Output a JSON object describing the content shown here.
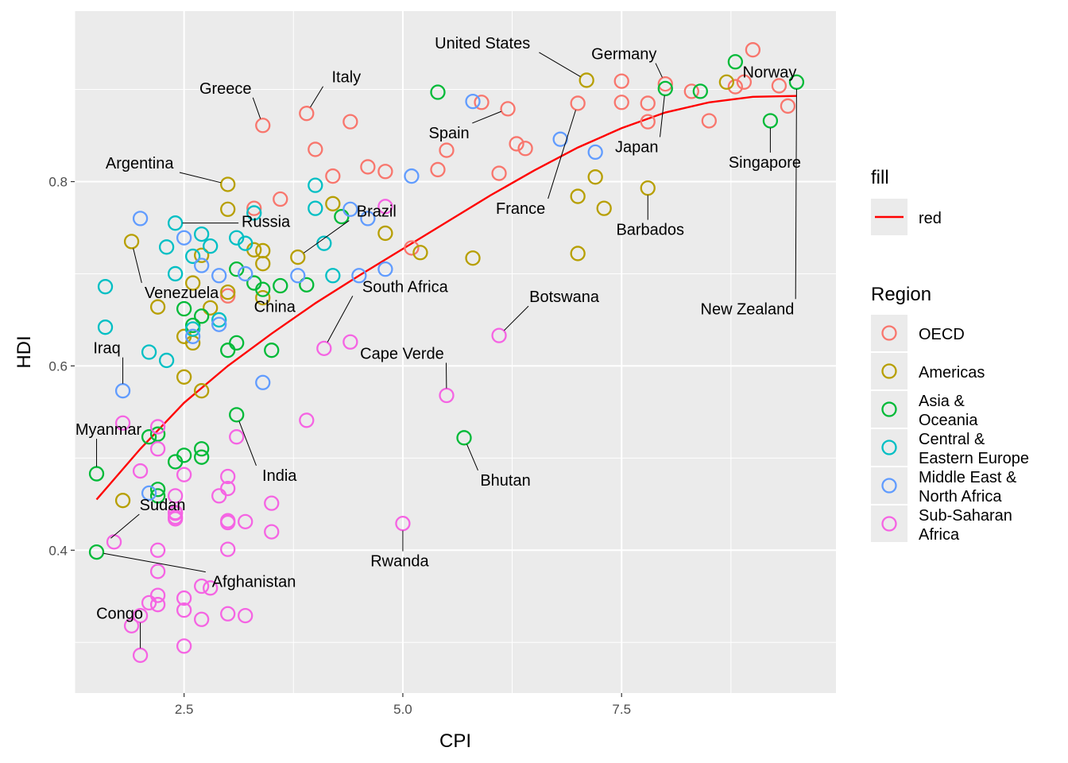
{
  "chart_data": {
    "type": "scatter",
    "xlabel": "CPI",
    "ylabel": "HDI",
    "xlim": [
      1.25,
      9.95
    ],
    "ylim": [
      0.245,
      0.985
    ],
    "x_ticks": [
      2.5,
      5.0,
      7.5
    ],
    "x_tick_labels": [
      "2.5",
      "5.0",
      "7.5"
    ],
    "y_ticks": [
      0.4,
      0.6,
      0.8
    ],
    "y_tick_labels": [
      "0.4",
      "0.6",
      "0.8"
    ],
    "x_minor": [
      1.25,
      3.75,
      6.25,
      8.75
    ],
    "y_minor": [
      0.3,
      0.5,
      0.7,
      0.9
    ],
    "grid": true,
    "panel_color": "#EBEBEB",
    "legend": {
      "fill_title": "fill",
      "fill_label": "red",
      "region_title": "Region",
      "region_entries": [
        {
          "key": "OECD",
          "lines": [
            "OECD"
          ],
          "color": "#F8766D"
        },
        {
          "key": "Americas",
          "lines": [
            "Americas"
          ],
          "color": "#B79F00"
        },
        {
          "key": "Asia",
          "lines": [
            "Asia &",
            "Oceania"
          ],
          "color": "#00BA38"
        },
        {
          "key": "CEE",
          "lines": [
            "Central &",
            "Eastern Europe"
          ],
          "color": "#00BFC4"
        },
        {
          "key": "MENA",
          "lines": [
            "Middle East &",
            "North Africa"
          ],
          "color": "#619CFF"
        },
        {
          "key": "SSA",
          "lines": [
            "Sub-Saharan",
            "Africa"
          ],
          "color": "#F564E3"
        }
      ]
    },
    "trend_line": {
      "name": "red",
      "color": "#FF0000",
      "x": [
        1.5,
        2.0,
        2.5,
        3.0,
        3.5,
        4.0,
        4.5,
        5.0,
        5.5,
        6.0,
        6.5,
        7.0,
        7.5,
        8.0,
        8.5,
        9.0,
        9.5
      ],
      "y": [
        0.455,
        0.51,
        0.56,
        0.6,
        0.635,
        0.668,
        0.698,
        0.727,
        0.756,
        0.785,
        0.812,
        0.837,
        0.858,
        0.875,
        0.886,
        0.892,
        0.893
      ]
    },
    "series": [
      {
        "name": "OECD",
        "color": "#F8766D",
        "points": [
          [
            3.4,
            0.861
          ],
          [
            3.9,
            0.874
          ],
          [
            4.4,
            0.865
          ],
          [
            4.0,
            0.835
          ],
          [
            4.2,
            0.806
          ],
          [
            4.6,
            0.816
          ],
          [
            4.8,
            0.811
          ],
          [
            3.3,
            0.771
          ],
          [
            3.6,
            0.781
          ],
          [
            5.5,
            0.834
          ],
          [
            5.9,
            0.886
          ],
          [
            5.4,
            0.813
          ],
          [
            6.2,
            0.879
          ],
          [
            6.3,
            0.841
          ],
          [
            6.4,
            0.836
          ],
          [
            6.1,
            0.809
          ],
          [
            7.0,
            0.885
          ],
          [
            7.5,
            0.886
          ],
          [
            7.5,
            0.909
          ],
          [
            7.8,
            0.885
          ],
          [
            8.0,
            0.906
          ],
          [
            7.8,
            0.865
          ],
          [
            8.3,
            0.898
          ],
          [
            8.5,
            0.866
          ],
          [
            8.8,
            0.903
          ],
          [
            8.9,
            0.908
          ],
          [
            9.0,
            0.943
          ],
          [
            9.3,
            0.904
          ],
          [
            9.4,
            0.882
          ],
          [
            3.0,
            0.676
          ],
          [
            5.1,
            0.728
          ]
        ]
      },
      {
        "name": "Americas",
        "color": "#B79F00",
        "points": [
          [
            3.0,
            0.797
          ],
          [
            3.0,
            0.77
          ],
          [
            1.9,
            0.735
          ],
          [
            3.3,
            0.726
          ],
          [
            3.4,
            0.725
          ],
          [
            3.4,
            0.711
          ],
          [
            3.8,
            0.718
          ],
          [
            4.2,
            0.776
          ],
          [
            4.8,
            0.744
          ],
          [
            5.2,
            0.723
          ],
          [
            5.8,
            0.717
          ],
          [
            7.0,
            0.784
          ],
          [
            7.0,
            0.722
          ],
          [
            7.1,
            0.91
          ],
          [
            7.2,
            0.805
          ],
          [
            7.3,
            0.771
          ],
          [
            7.8,
            0.793
          ],
          [
            8.7,
            0.908
          ],
          [
            2.2,
            0.664
          ],
          [
            2.5,
            0.632
          ],
          [
            2.6,
            0.625
          ],
          [
            2.5,
            0.588
          ],
          [
            2.7,
            0.573
          ],
          [
            2.8,
            0.663
          ],
          [
            1.8,
            0.454
          ],
          [
            3.0,
            0.68
          ],
          [
            2.7,
            0.72
          ],
          [
            2.6,
            0.69
          ],
          [
            3.4,
            0.674
          ]
        ]
      },
      {
        "name": "Asia",
        "color": "#00BA38",
        "points": [
          [
            8.8,
            0.93
          ],
          [
            9.2,
            0.866
          ],
          [
            9.5,
            0.908
          ],
          [
            8.0,
            0.901
          ],
          [
            8.4,
            0.898
          ],
          [
            5.4,
            0.897
          ],
          [
            5.7,
            0.522
          ],
          [
            3.1,
            0.547
          ],
          [
            2.7,
            0.51
          ],
          [
            2.7,
            0.501
          ],
          [
            2.5,
            0.503
          ],
          [
            2.4,
            0.496
          ],
          [
            2.2,
            0.526
          ],
          [
            2.1,
            0.523
          ],
          [
            1.5,
            0.483
          ],
          [
            1.5,
            0.398
          ],
          [
            2.2,
            0.466
          ],
          [
            2.2,
            0.459
          ],
          [
            3.1,
            0.625
          ],
          [
            3.0,
            0.617
          ],
          [
            3.5,
            0.617
          ],
          [
            3.3,
            0.69
          ],
          [
            3.9,
            0.688
          ],
          [
            3.1,
            0.705
          ],
          [
            4.3,
            0.762
          ],
          [
            3.4,
            0.683
          ],
          [
            3.6,
            0.687
          ],
          [
            2.5,
            0.662
          ],
          [
            2.7,
            0.654
          ],
          [
            2.6,
            0.644
          ]
        ]
      },
      {
        "name": "CEE",
        "color": "#00BFC4",
        "points": [
          [
            1.6,
            0.686
          ],
          [
            1.6,
            0.642
          ],
          [
            2.1,
            0.615
          ],
          [
            2.3,
            0.606
          ],
          [
            2.4,
            0.755
          ],
          [
            2.3,
            0.729
          ],
          [
            2.4,
            0.7
          ],
          [
            2.6,
            0.719
          ],
          [
            2.7,
            0.743
          ],
          [
            3.1,
            0.739
          ],
          [
            3.2,
            0.733
          ],
          [
            3.3,
            0.766
          ],
          [
            4.0,
            0.796
          ],
          [
            4.0,
            0.771
          ],
          [
            4.1,
            0.733
          ],
          [
            4.2,
            0.698
          ],
          [
            2.9,
            0.65
          ],
          [
            2.6,
            0.64
          ],
          [
            2.8,
            0.73
          ]
        ]
      },
      {
        "name": "MENA",
        "color": "#619CFF",
        "points": [
          [
            1.8,
            0.573
          ],
          [
            2.0,
            0.76
          ],
          [
            2.5,
            0.739
          ],
          [
            2.7,
            0.709
          ],
          [
            2.6,
            0.632
          ],
          [
            2.9,
            0.698
          ],
          [
            2.9,
            0.645
          ],
          [
            3.2,
            0.7
          ],
          [
            3.4,
            0.582
          ],
          [
            3.8,
            0.698
          ],
          [
            4.4,
            0.77
          ],
          [
            4.5,
            0.698
          ],
          [
            4.6,
            0.76
          ],
          [
            4.8,
            0.705
          ],
          [
            5.1,
            0.806
          ],
          [
            5.8,
            0.887
          ],
          [
            6.8,
            0.846
          ],
          [
            7.2,
            0.832
          ],
          [
            2.1,
            0.462
          ]
        ]
      },
      {
        "name": "SSA",
        "color": "#F564E3",
        "points": [
          [
            1.7,
            0.409
          ],
          [
            2.0,
            0.286
          ],
          [
            1.9,
            0.318
          ],
          [
            2.0,
            0.329
          ],
          [
            2.1,
            0.343
          ],
          [
            2.2,
            0.341
          ],
          [
            2.2,
            0.351
          ],
          [
            2.2,
            0.377
          ],
          [
            2.2,
            0.4
          ],
          [
            2.4,
            0.434
          ],
          [
            2.4,
            0.44
          ],
          [
            2.4,
            0.459
          ],
          [
            2.5,
            0.482
          ],
          [
            2.5,
            0.335
          ],
          [
            2.5,
            0.348
          ],
          [
            2.5,
            0.296
          ],
          [
            2.7,
            0.361
          ],
          [
            2.8,
            0.359
          ],
          [
            2.7,
            0.325
          ],
          [
            3.0,
            0.331
          ],
          [
            3.2,
            0.329
          ],
          [
            3.0,
            0.401
          ],
          [
            3.0,
            0.43
          ],
          [
            3.0,
            0.432
          ],
          [
            3.2,
            0.431
          ],
          [
            3.5,
            0.451
          ],
          [
            3.5,
            0.42
          ],
          [
            2.9,
            0.459
          ],
          [
            3.0,
            0.467
          ],
          [
            3.0,
            0.48
          ],
          [
            3.1,
            0.523
          ],
          [
            3.9,
            0.541
          ],
          [
            4.1,
            0.619
          ],
          [
            4.4,
            0.626
          ],
          [
            4.8,
            0.773
          ],
          [
            5.5,
            0.568
          ],
          [
            5.0,
            0.429
          ],
          [
            6.1,
            0.633
          ],
          [
            1.8,
            0.538
          ],
          [
            2.2,
            0.51
          ],
          [
            2.2,
            0.534
          ],
          [
            2.0,
            0.486
          ],
          [
            2.4,
            0.436
          ],
          [
            2.4,
            0.441
          ]
        ]
      }
    ],
    "annotations": [
      {
        "label": "Greece",
        "x": 3.4,
        "y": 0.861
      },
      {
        "label": "Italy",
        "x": 3.9,
        "y": 0.874
      },
      {
        "label": "United States",
        "x": 7.1,
        "y": 0.91
      },
      {
        "label": "Germany",
        "x": 8.0,
        "y": 0.906
      },
      {
        "label": "Norway",
        "x": 9.5,
        "y": 0.908
      },
      {
        "label": "Spain",
        "x": 6.2,
        "y": 0.879
      },
      {
        "label": "Japan",
        "x": 8.0,
        "y": 0.901
      },
      {
        "label": "Singapore",
        "x": 9.2,
        "y": 0.866
      },
      {
        "label": "Argentina",
        "x": 3.0,
        "y": 0.797
      },
      {
        "label": "France",
        "x": 7.0,
        "y": 0.885
      },
      {
        "label": "Barbados",
        "x": 7.8,
        "y": 0.793
      },
      {
        "label": "Russia",
        "x": 2.4,
        "y": 0.755
      },
      {
        "label": "Brazil",
        "x": 3.8,
        "y": 0.718
      },
      {
        "label": "Venezuela",
        "x": 1.9,
        "y": 0.735
      },
      {
        "label": "South Africa",
        "x": 4.1,
        "y": 0.619
      },
      {
        "label": "Botswana",
        "x": 6.1,
        "y": 0.633
      },
      {
        "label": "New Zealand",
        "x": 9.5,
        "y": 0.908
      },
      {
        "label": "Iraq",
        "x": 1.8,
        "y": 0.573
      },
      {
        "label": "China",
        "x": 3.6,
        "y": 0.687
      },
      {
        "label": "Cape Verde",
        "x": 5.5,
        "y": 0.568
      },
      {
        "label": "Myanmar",
        "x": 1.5,
        "y": 0.483
      },
      {
        "label": "India",
        "x": 3.1,
        "y": 0.547
      },
      {
        "label": "Bhutan",
        "x": 5.7,
        "y": 0.522
      },
      {
        "label": "Sudan",
        "x": 1.6,
        "y": 0.408
      },
      {
        "label": "Afghanistan",
        "x": 1.5,
        "y": 0.398
      },
      {
        "label": "Rwanda",
        "x": 5.0,
        "y": 0.429
      },
      {
        "label": "Congo",
        "x": 2.0,
        "y": 0.286
      }
    ]
  }
}
